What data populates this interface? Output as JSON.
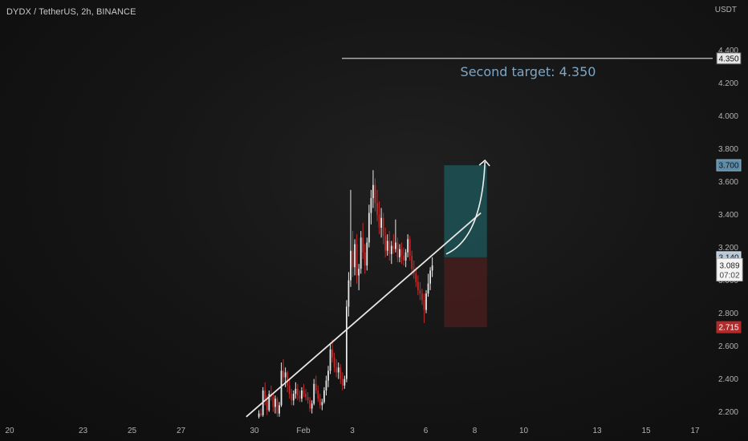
{
  "header": {
    "symbol": "DYDX / TetherUS, 2h, BINANCE"
  },
  "chart_data": {
    "type": "candlestick",
    "currency": "USDT",
    "ylim": [
      2.13,
      4.51
    ],
    "y_ticks": [
      "2.200",
      "2.400",
      "2.600",
      "2.800",
      "3.000",
      "3.200",
      "3.400",
      "3.600",
      "3.800",
      "4.000",
      "4.200",
      "4.400"
    ],
    "x_ticks": [
      {
        "label": "20",
        "index": -4
      },
      {
        "label": "23",
        "index": 32
      },
      {
        "label": "25",
        "index": 56
      },
      {
        "label": "27",
        "index": 80
      },
      {
        "label": "30",
        "index": 116
      },
      {
        "label": "Feb",
        "index": 140
      },
      {
        "label": "3",
        "index": 164
      },
      {
        "label": "6",
        "index": 200
      },
      {
        "label": "8",
        "index": 224
      },
      {
        "label": "10",
        "index": 248
      },
      {
        "label": "13",
        "index": 284
      },
      {
        "label": "15",
        "index": 308
      },
      {
        "label": "17",
        "index": 332
      }
    ],
    "annotation": "Second target: 4.350",
    "target_line_value": 4.35,
    "trendline": {
      "start_index": 112,
      "start_value": 2.17,
      "end_index": 227,
      "end_value": 3.41
    },
    "position": {
      "start_index": 209,
      "end_index": 230,
      "entry": 3.14,
      "target": 3.7,
      "stop": 2.715
    },
    "arrow": {
      "start_index": 210,
      "start_value": 3.16,
      "end_index": 229,
      "end_value": 3.72
    },
    "price_tags": [
      {
        "value": "4.350",
        "price": 4.35,
        "bg": "#e6e6e6",
        "fg": "#111111",
        "border": "#555555"
      },
      {
        "value": "3.700",
        "price": 3.7,
        "bg": "#5e8ca6",
        "fg": "#0b1620",
        "border": "#8fb3c9"
      },
      {
        "value": "3.140",
        "price": 3.14,
        "bg": "#b8c8d8",
        "fg": "#0d1722",
        "border": "#dde7f0"
      },
      {
        "value": "2.715",
        "price": 2.715,
        "bg": "#b42a2a",
        "fg": "#ffffff",
        "border": "#b42a2a"
      }
    ],
    "last_price": {
      "value": "3.089",
      "countdown": "07:02",
      "price": 3.089
    },
    "candles": [
      [
        2.17,
        2.21,
        2.16,
        2.19
      ],
      [
        2.19,
        2.22,
        2.17,
        2.18
      ],
      [
        2.18,
        2.35,
        2.17,
        2.33
      ],
      [
        2.33,
        2.38,
        2.24,
        2.27
      ],
      [
        2.27,
        2.3,
        2.18,
        2.21
      ],
      [
        2.21,
        2.33,
        2.2,
        2.31
      ],
      [
        2.31,
        2.36,
        2.27,
        2.29
      ],
      [
        2.29,
        2.31,
        2.2,
        2.23
      ],
      [
        2.23,
        2.3,
        2.19,
        2.28
      ],
      [
        2.28,
        2.29,
        2.17,
        2.19
      ],
      [
        2.19,
        2.26,
        2.17,
        2.24
      ],
      [
        2.24,
        2.5,
        2.23,
        2.45
      ],
      [
        2.45,
        2.52,
        2.38,
        2.41
      ],
      [
        2.41,
        2.47,
        2.35,
        2.44
      ],
      [
        2.44,
        2.45,
        2.32,
        2.36
      ],
      [
        2.36,
        2.4,
        2.28,
        2.31
      ],
      [
        2.31,
        2.34,
        2.24,
        2.27
      ],
      [
        2.27,
        2.33,
        2.24,
        2.31
      ],
      [
        2.31,
        2.38,
        2.28,
        2.34
      ],
      [
        2.34,
        2.37,
        2.27,
        2.3
      ],
      [
        2.3,
        2.33,
        2.26,
        2.28
      ],
      [
        2.28,
        2.35,
        2.26,
        2.33
      ],
      [
        2.33,
        2.37,
        2.29,
        2.31
      ],
      [
        2.31,
        2.34,
        2.27,
        2.29
      ],
      [
        2.29,
        2.32,
        2.25,
        2.27
      ],
      [
        2.27,
        2.29,
        2.2,
        2.22
      ],
      [
        2.22,
        2.27,
        2.19,
        2.25
      ],
      [
        2.25,
        2.4,
        2.24,
        2.37
      ],
      [
        2.37,
        2.42,
        2.31,
        2.33
      ],
      [
        2.33,
        2.36,
        2.26,
        2.28
      ],
      [
        2.28,
        2.31,
        2.22,
        2.24
      ],
      [
        2.24,
        2.28,
        2.21,
        2.26
      ],
      [
        2.26,
        2.35,
        2.25,
        2.33
      ],
      [
        2.33,
        2.42,
        2.3,
        2.39
      ],
      [
        2.39,
        2.48,
        2.35,
        2.45
      ],
      [
        2.45,
        2.62,
        2.43,
        2.58
      ],
      [
        2.58,
        2.64,
        2.5,
        2.53
      ],
      [
        2.53,
        2.56,
        2.44,
        2.47
      ],
      [
        2.47,
        2.52,
        2.41,
        2.44
      ],
      [
        2.44,
        2.5,
        2.4,
        2.47
      ],
      [
        2.47,
        2.49,
        2.37,
        2.4
      ],
      [
        2.4,
        2.44,
        2.33,
        2.36
      ],
      [
        2.36,
        2.42,
        2.34,
        2.4
      ],
      [
        2.4,
        2.88,
        2.38,
        2.84
      ],
      [
        2.84,
        3.05,
        2.78,
        3.0
      ],
      [
        3.0,
        3.55,
        2.96,
        3.18
      ],
      [
        3.18,
        3.3,
        3.02,
        3.08
      ],
      [
        3.08,
        3.25,
        3.03,
        3.22
      ],
      [
        3.22,
        3.28,
        2.98,
        3.03
      ],
      [
        3.03,
        3.1,
        2.94,
        3.07
      ],
      [
        3.07,
        3.3,
        3.04,
        3.26
      ],
      [
        3.26,
        3.35,
        3.13,
        3.17
      ],
      [
        3.17,
        3.22,
        3.04,
        3.09
      ],
      [
        3.09,
        3.26,
        3.06,
        3.23
      ],
      [
        3.23,
        3.46,
        3.2,
        3.41
      ],
      [
        3.41,
        3.55,
        3.34,
        3.5
      ],
      [
        3.5,
        3.67,
        3.44,
        3.58
      ],
      [
        3.58,
        3.62,
        3.42,
        3.47
      ],
      [
        3.47,
        3.55,
        3.36,
        3.4
      ],
      [
        3.4,
        3.48,
        3.28,
        3.32
      ],
      [
        3.32,
        3.44,
        3.26,
        3.38
      ],
      [
        3.38,
        3.41,
        3.22,
        3.27
      ],
      [
        3.27,
        3.32,
        3.14,
        3.18
      ],
      [
        3.18,
        3.28,
        3.15,
        3.24
      ],
      [
        3.24,
        3.3,
        3.12,
        3.16
      ],
      [
        3.16,
        3.24,
        3.1,
        3.21
      ],
      [
        3.21,
        3.28,
        3.16,
        3.19
      ],
      [
        3.19,
        3.37,
        3.17,
        3.23
      ],
      [
        3.23,
        3.26,
        3.11,
        3.14
      ],
      [
        3.14,
        3.22,
        3.11,
        3.19
      ],
      [
        3.19,
        3.23,
        3.1,
        3.15
      ],
      [
        3.15,
        3.2,
        3.09,
        3.12
      ],
      [
        3.12,
        3.19,
        3.08,
        3.17
      ],
      [
        3.17,
        3.28,
        3.14,
        3.25
      ],
      [
        3.25,
        3.27,
        3.12,
        3.15
      ],
      [
        3.15,
        3.18,
        3.03,
        3.07
      ],
      [
        3.07,
        3.12,
        3.01,
        3.04
      ],
      [
        3.04,
        3.08,
        2.96,
        2.99
      ],
      [
        2.99,
        3.03,
        2.91,
        2.94
      ],
      [
        2.94,
        2.99,
        2.88,
        2.92
      ],
      [
        2.92,
        2.95,
        2.85,
        2.88
      ],
      [
        2.88,
        2.92,
        2.74,
        2.82
      ],
      [
        2.82,
        2.94,
        2.8,
        2.92
      ],
      [
        2.92,
        3.04,
        2.9,
        2.98
      ],
      [
        2.98,
        3.08,
        2.94,
        3.06
      ],
      [
        3.06,
        3.14,
        3.02,
        3.09
      ]
    ],
    "candle_start_index": 116
  }
}
